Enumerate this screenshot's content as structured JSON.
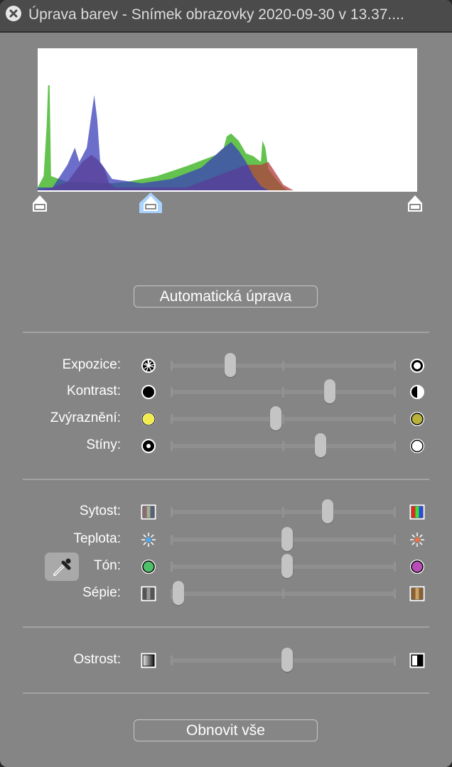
{
  "window": {
    "title": "Úprava barev - Snímek obrazovky 2020-09-30 v 13.37...."
  },
  "histogram": {
    "channel_colors": {
      "red": "#b23c3c",
      "green": "#5cbf46",
      "blue": "#3a3fb8"
    },
    "channels": {
      "green": [
        [
          0,
          2
        ],
        [
          4,
          10
        ],
        [
          6,
          45
        ],
        [
          7,
          74
        ],
        [
          8,
          74
        ],
        [
          9,
          10
        ],
        [
          20,
          6
        ],
        [
          50,
          5
        ],
        [
          60,
          6
        ],
        [
          80,
          10
        ],
        [
          100,
          17
        ],
        [
          120,
          25
        ],
        [
          125,
          30
        ],
        [
          127,
          38
        ],
        [
          130,
          40
        ],
        [
          132,
          38
        ],
        [
          135,
          35
        ],
        [
          140,
          26
        ],
        [
          145,
          24
        ],
        [
          150,
          20
        ],
        [
          151,
          35
        ],
        [
          153,
          30
        ],
        [
          155,
          15
        ],
        [
          160,
          8
        ],
        [
          165,
          2
        ],
        [
          168,
          0
        ],
        [
          255,
          0
        ]
      ],
      "blue": [
        [
          0,
          2
        ],
        [
          10,
          2
        ],
        [
          15,
          10
        ],
        [
          20,
          18
        ],
        [
          25,
          30
        ],
        [
          28,
          20
        ],
        [
          33,
          30
        ],
        [
          38,
          67
        ],
        [
          40,
          50
        ],
        [
          42,
          20
        ],
        [
          50,
          8
        ],
        [
          70,
          5
        ],
        [
          90,
          8
        ],
        [
          110,
          16
        ],
        [
          125,
          30
        ],
        [
          130,
          34
        ],
        [
          135,
          28
        ],
        [
          140,
          20
        ],
        [
          145,
          10
        ],
        [
          150,
          3
        ],
        [
          155,
          0
        ],
        [
          255,
          0
        ]
      ],
      "red": [
        [
          0,
          0
        ],
        [
          10,
          2
        ],
        [
          20,
          6
        ],
        [
          30,
          20
        ],
        [
          36,
          25
        ],
        [
          40,
          22
        ],
        [
          45,
          15
        ],
        [
          48,
          5
        ],
        [
          52,
          2
        ],
        [
          100,
          2
        ],
        [
          140,
          18
        ],
        [
          150,
          18
        ],
        [
          155,
          20
        ],
        [
          160,
          12
        ],
        [
          165,
          4
        ],
        [
          170,
          1
        ],
        [
          172,
          0
        ],
        [
          255,
          0
        ]
      ]
    },
    "levels": {
      "black": 0,
      "gamma": 0.295,
      "white": 1
    }
  },
  "auto_button": "Automatická úprava",
  "reset_button": "Obnovit vše",
  "groups": [
    [
      {
        "label": "Expozice:",
        "left_icon": "aperture-closed",
        "right_icon": "aperture-open",
        "value": 0.25
      },
      {
        "label": "Kontrast:",
        "left_icon": "circle-black",
        "right_icon": "circle-half",
        "value": 0.69
      },
      {
        "label": "Zvýraznění:",
        "left_icon": "circle-yellow",
        "right_icon": "circle-olive",
        "value": 0.45
      },
      {
        "label": "Stíny:",
        "left_icon": "circle-dot",
        "right_icon": "circle-white",
        "value": 0.65
      }
    ],
    [
      {
        "label": "Sytost:",
        "left_icon": "stripes-muted",
        "right_icon": "stripes-rgb",
        "value": 0.68
      },
      {
        "label": "Teplota:",
        "left_icon": "sun-blue",
        "right_icon": "sun-orange",
        "value": 0.5
      },
      {
        "label": "Tón:",
        "left_icon": "circle-green",
        "right_icon": "circle-magenta",
        "value": 0.5
      },
      {
        "label": "Sépie:",
        "left_icon": "stripes-gray",
        "right_icon": "stripes-sepia",
        "value": 0.02
      }
    ],
    [
      {
        "label": "Ostrost:",
        "left_icon": "gradient-soft",
        "right_icon": "gradient-sharp",
        "value": 0.5
      }
    ]
  ]
}
